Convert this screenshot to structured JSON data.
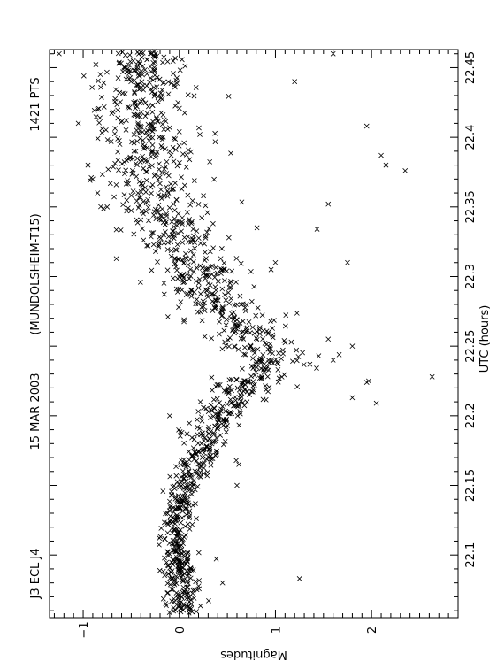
{
  "chart_data": {
    "type": "scatter",
    "orientation": "rotated-90-ccw",
    "title_parts": [
      "J3 ECL J4",
      "15 MAR 2003",
      "(MUNDOLSHEIM-T15)",
      "1421 PTS"
    ],
    "xlabel": "UTC (hours)",
    "ylabel": "Magnitudes",
    "x_ticks": [
      "22.1",
      "22.15",
      "22.2",
      "22.25",
      "22.3",
      "22.35",
      "22.4",
      "22.45"
    ],
    "y_ticks": [
      "-1",
      "0",
      "1",
      "2"
    ],
    "xlim": [
      22.055,
      22.463
    ],
    "ylim": [
      -1.35,
      2.9
    ],
    "y_inverted": true,
    "marker": "x",
    "n_points": 1421,
    "trend": [
      {
        "x": 22.06,
        "y": 0.05
      },
      {
        "x": 22.08,
        "y": 0.0
      },
      {
        "x": 22.1,
        "y": -0.05
      },
      {
        "x": 22.12,
        "y": -0.03
      },
      {
        "x": 22.14,
        "y": 0.0
      },
      {
        "x": 22.16,
        "y": 0.12
      },
      {
        "x": 22.18,
        "y": 0.25
      },
      {
        "x": 22.2,
        "y": 0.4
      },
      {
        "x": 22.22,
        "y": 0.65
      },
      {
        "x": 22.23,
        "y": 0.8
      },
      {
        "x": 22.24,
        "y": 0.9
      },
      {
        "x": 22.25,
        "y": 0.85
      },
      {
        "x": 22.26,
        "y": 0.75
      },
      {
        "x": 22.27,
        "y": 0.55
      },
      {
        "x": 22.28,
        "y": 0.35
      },
      {
        "x": 22.3,
        "y": 0.2
      },
      {
        "x": 22.32,
        "y": 0.05
      },
      {
        "x": 22.35,
        "y": -0.25
      },
      {
        "x": 22.38,
        "y": -0.3
      },
      {
        "x": 22.4,
        "y": -0.35
      },
      {
        "x": 22.43,
        "y": -0.4
      },
      {
        "x": 22.46,
        "y": -0.38
      }
    ],
    "spread": [
      {
        "x": 22.06,
        "s": 0.12
      },
      {
        "x": 22.15,
        "s": 0.12
      },
      {
        "x": 22.2,
        "s": 0.2
      },
      {
        "x": 22.25,
        "s": 0.3
      },
      {
        "x": 22.3,
        "s": 0.32
      },
      {
        "x": 22.38,
        "s": 0.35
      },
      {
        "x": 22.46,
        "s": 0.3
      }
    ],
    "outliers": [
      {
        "x": 22.083,
        "y": 1.25
      },
      {
        "x": 22.08,
        "y": 0.45
      },
      {
        "x": 22.209,
        "y": 2.05
      },
      {
        "x": 22.224,
        "y": 1.95
      },
      {
        "x": 22.225,
        "y": 1.97
      },
      {
        "x": 22.228,
        "y": 2.63
      },
      {
        "x": 22.213,
        "y": 1.8
      },
      {
        "x": 22.25,
        "y": 1.8
      },
      {
        "x": 22.31,
        "y": 1.75
      },
      {
        "x": 22.31,
        "y": 1.0
      },
      {
        "x": 22.352,
        "y": 1.55
      },
      {
        "x": 22.376,
        "y": 2.35
      },
      {
        "x": 22.38,
        "y": 2.15
      },
      {
        "x": 22.387,
        "y": 2.1
      },
      {
        "x": 22.408,
        "y": 1.95
      },
      {
        "x": 22.41,
        "y": -1.05
      },
      {
        "x": 22.38,
        "y": -0.95
      },
      {
        "x": 22.46,
        "y": -1.25
      },
      {
        "x": 22.46,
        "y": 1.6
      },
      {
        "x": 22.44,
        "y": 1.2
      },
      {
        "x": 22.35,
        "y": -0.75
      },
      {
        "x": 22.36,
        "y": -0.85
      },
      {
        "x": 22.37,
        "y": -0.9
      },
      {
        "x": 22.165,
        "y": 0.62
      },
      {
        "x": 22.15,
        "y": 0.6
      },
      {
        "x": 22.2,
        "y": -0.1
      },
      {
        "x": 22.255,
        "y": 1.55
      },
      {
        "x": 22.24,
        "y": 1.6
      },
      {
        "x": 22.243,
        "y": 1.45
      }
    ]
  }
}
